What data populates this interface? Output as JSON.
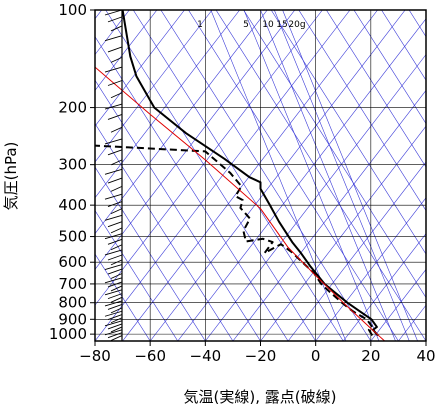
{
  "chart_data": {
    "type": "line",
    "title": "",
    "xlabel": "気温(実線), 露点(破線)",
    "ylabel": "気圧(hPa)",
    "xlim": [
      -80,
      40
    ],
    "ylim": [
      1050,
      100
    ],
    "y_scale": "log",
    "x_ticks": [
      -80,
      -60,
      -40,
      -20,
      0,
      20,
      40
    ],
    "x_tick_labels": [
      "−80",
      "−60",
      "−40",
      "−20",
      "0",
      "20",
      "40"
    ],
    "y_ticks": [
      100,
      200,
      300,
      400,
      500,
      600,
      700,
      800,
      900,
      1000
    ],
    "y_tick_labels": [
      "100",
      "200",
      "300",
      "400",
      "500",
      "600",
      "700",
      "800",
      "900",
      "1000"
    ],
    "grid": true,
    "mixing_ratio_labels": [
      "1",
      "5",
      "10",
      "15",
      "20g"
    ],
    "colors": {
      "temperature": "#000000",
      "dewpoint": "#000000",
      "parcel": "#e00000",
      "reference_lines": "#3a3ad8",
      "grid": "#000000",
      "wind_barbs": "#000000"
    },
    "series": [
      {
        "name": "",
        "role": "temperature",
        "line_style": "solid",
        "points": [
          [
            22.6,
            1010
          ],
          [
            20.8,
            970
          ],
          [
            22.2,
            950
          ],
          [
            20.2,
            900
          ],
          [
            16.0,
            850
          ],
          [
            11.5,
            800
          ],
          [
            6.6,
            740
          ],
          [
            3.2,
            700
          ],
          [
            0.8,
            660
          ],
          [
            -1.8,
            620
          ],
          [
            -5.5,
            560
          ],
          [
            -8.5,
            520
          ],
          [
            -13.3,
            450
          ],
          [
            -16.6,
            400
          ],
          [
            -20.0,
            356
          ],
          [
            -20.0,
            340
          ],
          [
            -24.0,
            328
          ],
          [
            -33.0,
            288
          ],
          [
            -47.0,
            240
          ],
          [
            -58.5,
            200
          ],
          [
            -65.0,
            160
          ],
          [
            -67.2,
            139
          ],
          [
            -69.2,
            110
          ],
          [
            -70.0,
            100
          ]
        ]
      },
      {
        "name": "",
        "role": "dewpoint",
        "line_style": "dashed",
        "points": [
          [
            20.5,
            1010
          ],
          [
            19.3,
            970
          ],
          [
            20.5,
            950
          ],
          [
            18.5,
            900
          ],
          [
            13.5,
            850
          ],
          [
            9.5,
            800
          ],
          [
            5.0,
            740
          ],
          [
            2.0,
            700
          ],
          [
            -0.5,
            650
          ],
          [
            -8.5,
            560
          ],
          [
            -12.6,
            528
          ],
          [
            -18.5,
            562
          ],
          [
            -15.6,
            520
          ],
          [
            -19.1,
            508
          ],
          [
            -25.3,
            518
          ],
          [
            -26.2,
            480
          ],
          [
            -23.8,
            440
          ],
          [
            -27.3,
            408
          ],
          [
            -26.4,
            386
          ],
          [
            -29.1,
            375
          ],
          [
            -26.9,
            350
          ],
          [
            -31.0,
            318
          ],
          [
            -40.0,
            273
          ],
          [
            -80.0,
            262
          ]
        ]
      },
      {
        "name": "",
        "role": "parcel",
        "line_style": "solid",
        "points": [
          [
            25.0,
            1050
          ],
          [
            20.0,
            960
          ],
          [
            10.0,
            800
          ],
          [
            0.0,
            660
          ],
          [
            -10.0,
            540
          ],
          [
            -20.0,
            410
          ],
          [
            -40.0,
            290
          ],
          [
            -60.0,
            210
          ],
          [
            -80.0,
            150
          ]
        ]
      }
    ],
    "wind_barb_levels": [
      1010,
      990,
      970,
      950,
      930,
      910,
      890,
      870,
      850,
      830,
      810,
      790,
      770,
      750,
      730,
      710,
      690,
      670,
      650,
      630,
      610,
      590,
      570,
      550,
      530,
      510,
      490,
      470,
      450,
      430,
      410,
      390,
      370,
      350,
      330,
      310,
      290,
      270,
      250,
      230,
      210,
      195,
      180,
      165,
      150,
      140,
      130,
      120,
      112,
      105,
      100
    ]
  }
}
